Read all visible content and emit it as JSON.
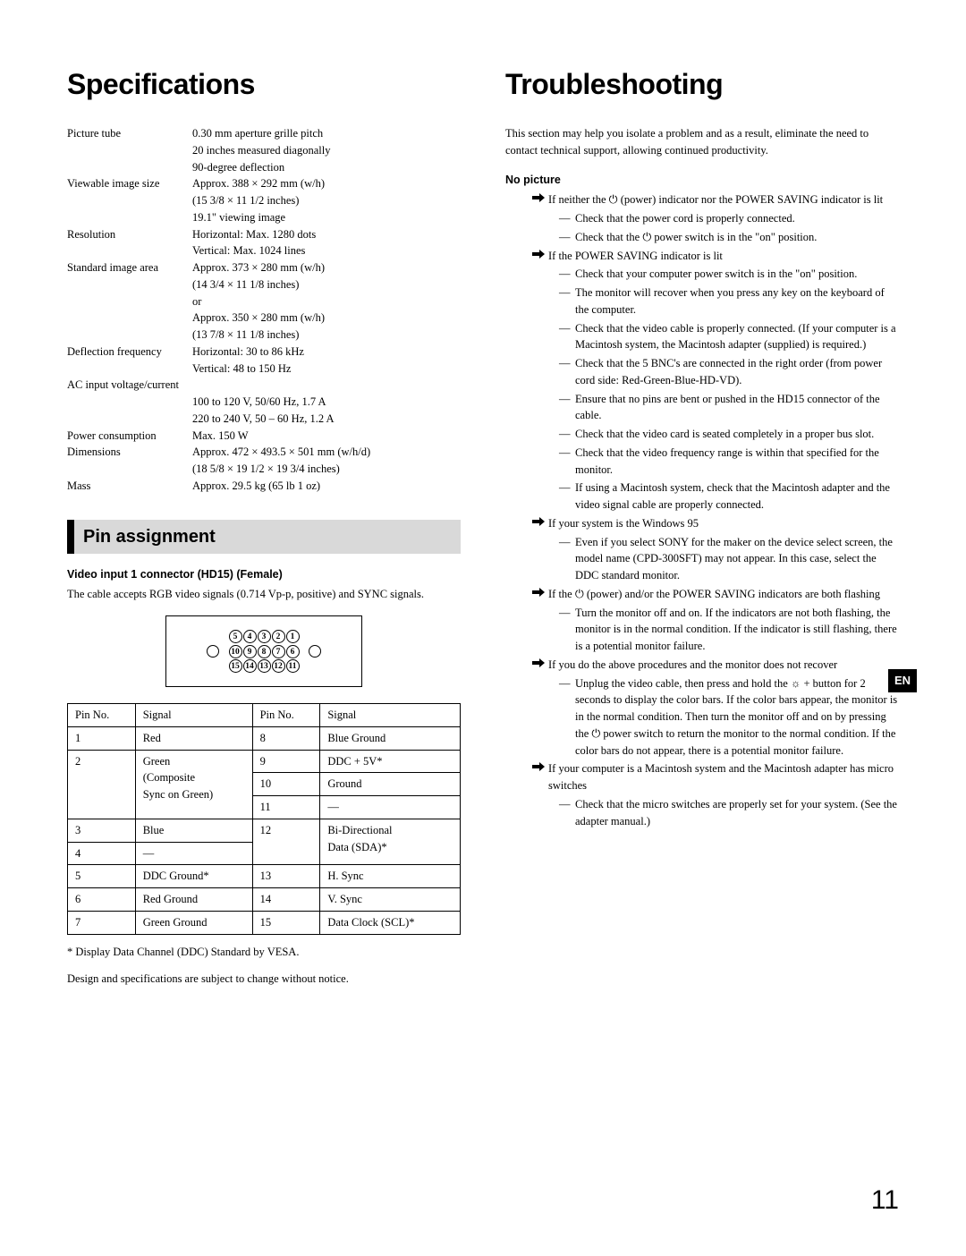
{
  "left": {
    "title": "Specifications",
    "specs": [
      {
        "label": "Picture tube",
        "lines": [
          "0.30 mm aperture grille pitch",
          "20 inches measured diagonally",
          "90-degree deflection"
        ]
      },
      {
        "label": "Viewable image size",
        "lines": [
          "Approx. 388 × 292 mm (w/h)",
          "(15 3/8 × 11 1/2 inches)",
          "19.1\" viewing image"
        ]
      },
      {
        "label": "Resolution",
        "lines": [
          "Horizontal: Max. 1280 dots",
          "Vertical: Max. 1024 lines"
        ]
      },
      {
        "label": "Standard image area",
        "lines": [
          "Approx. 373 × 280 mm (w/h)",
          "(14 3/4 × 11 1/8 inches)",
          "or",
          "Approx. 350 × 280 mm (w/h)",
          "(13 7/8 × 11 1/8 inches)"
        ]
      },
      {
        "label": "Deflection frequency",
        "lines": [
          "Horizontal: 30 to 86 kHz",
          "Vertical: 48 to 150 Hz"
        ]
      },
      {
        "label": "AC input voltage/current",
        "full": true,
        "lines": [
          "100 to 120 V, 50/60 Hz, 1.7 A",
          "220 to 240 V, 50 – 60 Hz, 1.2 A"
        ]
      },
      {
        "label": "Power consumption",
        "lines": [
          "Max. 150 W"
        ]
      },
      {
        "label": "Dimensions",
        "lines": [
          "Approx. 472 × 493.5 × 501 mm (w/h/d)",
          "(18 5/8 × 19 1/2 × 19 3/4 inches)"
        ]
      },
      {
        "label": "Mass",
        "lines": [
          "Approx. 29.5 kg (65 lb 1 oz)"
        ]
      }
    ],
    "pin_heading": "Pin assignment",
    "video_head": "Video input 1 connector (HD15) (Female)",
    "video_desc": "The cable accepts RGB video signals (0.714 Vp-p, positive) and SYNC signals.",
    "pinrows": [
      [
        "5",
        "4",
        "3",
        "2",
        "1"
      ],
      [
        "10",
        "9",
        "8",
        "7",
        "6"
      ],
      [
        "15",
        "14",
        "13",
        "12",
        "11"
      ]
    ],
    "table_head": [
      "Pin No.",
      "Signal",
      "Pin No.",
      "Signal"
    ],
    "table": [
      [
        "1",
        "Red",
        "8",
        "Blue Ground"
      ],
      [
        "2-a",
        "Green",
        "9",
        "DDC + 5V*"
      ],
      [
        "2-b",
        "(Composite",
        "10",
        "Ground"
      ],
      [
        "2-c",
        "Sync on Green)",
        "11",
        "—"
      ],
      [
        "3",
        "Blue",
        "12-a",
        "Bi-Directional"
      ],
      [
        "4",
        "—",
        "12-b",
        "Data (SDA)*"
      ],
      [
        "5",
        "DDC Ground*",
        "13",
        "H. Sync"
      ],
      [
        "6",
        "Red Ground",
        "14",
        "V. Sync"
      ],
      [
        "7",
        "Green Ground",
        "15",
        "Data Clock (SCL)*"
      ]
    ],
    "footnote1": "* Display Data Channel (DDC) Standard by VESA.",
    "footnote2": "Design and specifications are subject to change without notice."
  },
  "right": {
    "title": "Troubleshooting",
    "intro": "This section may help you isolate a problem and as a result, eliminate the need to contact technical support, allowing continued productivity.",
    "no_picture": "No picture",
    "items": [
      {
        "lead": "If neither the ⏻ (power) indicator nor the POWER SAVING indicator is lit",
        "subs": [
          "Check that the power cord is properly connected.",
          "Check that the ⏻ power switch is in the \"on\" position."
        ]
      },
      {
        "lead": "If the POWER SAVING indicator is lit",
        "subs": [
          "Check that your computer power switch is in the \"on\" position.",
          "The monitor will recover when you press any key on the keyboard of the computer.",
          "Check that the video cable is properly connected. (If your computer is a Macintosh system, the Macintosh adapter (supplied) is required.)",
          "Check that the 5 BNC's are connected in the right order (from power cord side: Red-Green-Blue-HD-VD).",
          "Ensure that no pins are bent or pushed in the HD15 connector of the cable.",
          "Check that the video card is seated completely in a proper bus slot.",
          "Check that the video frequency range is within that specified for the monitor.",
          "If using a Macintosh system, check that the Macintosh adapter and the video signal cable are properly connected."
        ]
      },
      {
        "lead": "If your system is the Windows 95",
        "subs": [
          "Even if you select SONY for the maker on the device select screen, the model name (CPD-300SFT) may not appear. In this case, select the DDC standard monitor."
        ]
      },
      {
        "lead": "If the ⏻ (power) and/or the POWER SAVING indicators are both flashing",
        "subs": [
          "Turn the monitor off and on. If the indicators are not both flashing, the monitor is in the normal condition. If the indicator is still flashing, there is a potential monitor failure."
        ]
      },
      {
        "lead": "If you do the above procedures and the monitor does not recover",
        "subs": [
          "Unplug the video cable, then press and hold the ☼ + button for 2 seconds to display the color bars. If the color bars appear, the monitor is in the normal condition. Then turn the monitor off and on by pressing the ⏻ power switch to return the monitor to the normal condition. If the color bars do not appear, there is a potential monitor failure."
        ]
      },
      {
        "lead": "If your computer is a Macintosh system and the Macintosh adapter has micro switches",
        "subs": [
          "Check that the micro switches are properly set for your system. (See the adapter manual.)"
        ]
      }
    ],
    "en": "EN",
    "page": "11"
  }
}
